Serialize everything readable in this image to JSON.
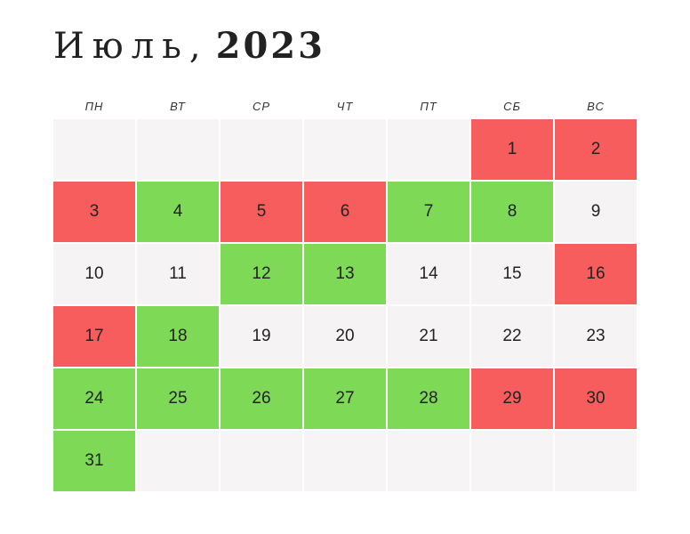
{
  "title": {
    "month": "Июль,",
    "year": "2023"
  },
  "weekdays": [
    "ПН",
    "ВТ",
    "СР",
    "ЧТ",
    "ПТ",
    "СБ",
    "ВС"
  ],
  "colors": {
    "red": "#f75d5d",
    "green": "#7ed957",
    "neutral": "#f5f3f3"
  },
  "weeks": [
    [
      {
        "day": "",
        "status": "empty"
      },
      {
        "day": "",
        "status": "empty"
      },
      {
        "day": "",
        "status": "empty"
      },
      {
        "day": "",
        "status": "empty"
      },
      {
        "day": "",
        "status": "empty"
      },
      {
        "day": "1",
        "status": "red"
      },
      {
        "day": "2",
        "status": "red"
      }
    ],
    [
      {
        "day": "3",
        "status": "red"
      },
      {
        "day": "4",
        "status": "green"
      },
      {
        "day": "5",
        "status": "red"
      },
      {
        "day": "6",
        "status": "red"
      },
      {
        "day": "7",
        "status": "green"
      },
      {
        "day": "8",
        "status": "green"
      },
      {
        "day": "9",
        "status": "neutral"
      }
    ],
    [
      {
        "day": "10",
        "status": "neutral"
      },
      {
        "day": "11",
        "status": "neutral"
      },
      {
        "day": "12",
        "status": "green"
      },
      {
        "day": "13",
        "status": "green"
      },
      {
        "day": "14",
        "status": "neutral"
      },
      {
        "day": "15",
        "status": "neutral"
      },
      {
        "day": "16",
        "status": "red"
      }
    ],
    [
      {
        "day": "17",
        "status": "red"
      },
      {
        "day": "18",
        "status": "green"
      },
      {
        "day": "19",
        "status": "neutral"
      },
      {
        "day": "20",
        "status": "neutral"
      },
      {
        "day": "21",
        "status": "neutral"
      },
      {
        "day": "22",
        "status": "neutral"
      },
      {
        "day": "23",
        "status": "neutral"
      }
    ],
    [
      {
        "day": "24",
        "status": "green"
      },
      {
        "day": "25",
        "status": "green"
      },
      {
        "day": "26",
        "status": "green"
      },
      {
        "day": "27",
        "status": "green"
      },
      {
        "day": "28",
        "status": "green"
      },
      {
        "day": "29",
        "status": "red"
      },
      {
        "day": "30",
        "status": "red"
      }
    ],
    [
      {
        "day": "31",
        "status": "green"
      },
      {
        "day": "",
        "status": "empty"
      },
      {
        "day": "",
        "status": "empty"
      },
      {
        "day": "",
        "status": "empty"
      },
      {
        "day": "",
        "status": "empty"
      },
      {
        "day": "",
        "status": "empty"
      },
      {
        "day": "",
        "status": "empty"
      }
    ]
  ]
}
